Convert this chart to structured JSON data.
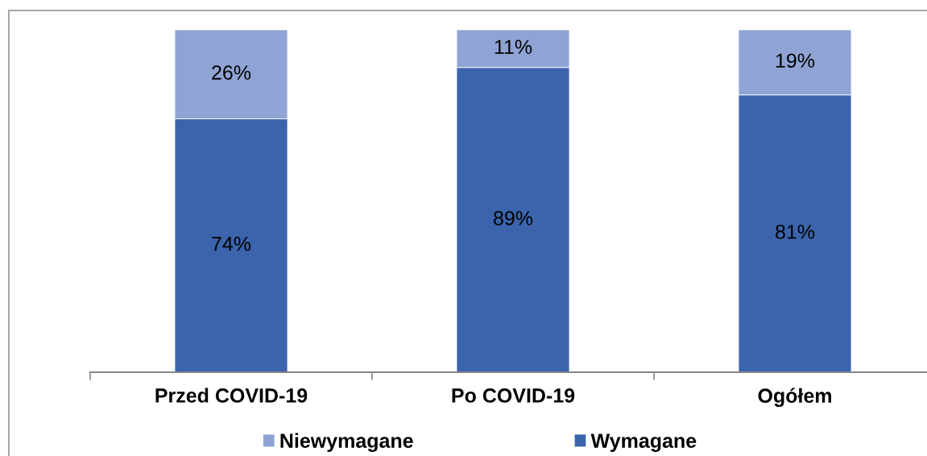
{
  "chart_data": {
    "type": "bar",
    "stacked": true,
    "categories": [
      "Przed COVID-19",
      "Po COVID-19",
      "Ogółem"
    ],
    "series": [
      {
        "name": "Wymagane",
        "color": "#3c64ac",
        "values": [
          74,
          89,
          81
        ],
        "value_labels": [
          "74%",
          "89%",
          "81%"
        ]
      },
      {
        "name": "Niewymagane",
        "color": "#8fa4d4",
        "values": [
          26,
          11,
          19
        ],
        "value_labels": [
          "26%",
          "11%",
          "19%"
        ]
      }
    ],
    "legend": "bottom"
  }
}
